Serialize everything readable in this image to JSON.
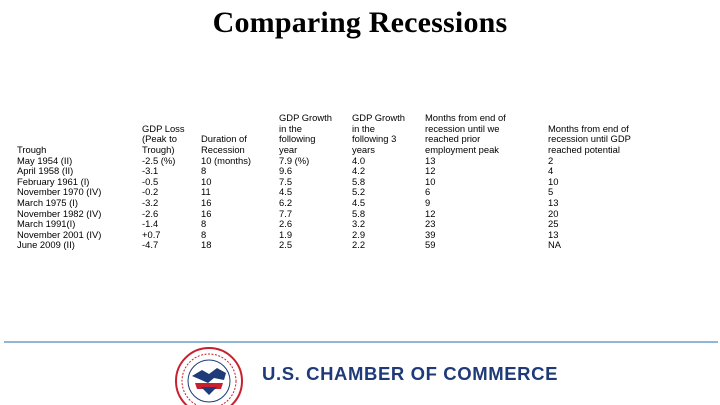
{
  "title": "Comparing Recessions",
  "columns": [
    {
      "header": [
        "Trough"
      ],
      "values": [
        "May 1954 (II)",
        "April 1958 (II)",
        "February 1961 (I)",
        "November 1970 (IV)",
        "March 1975 (I)",
        "November 1982 (IV)",
        "March 1991(I)",
        "November 2001 (IV)",
        "June 2009 (II)"
      ]
    },
    {
      "header": [
        "GDP Loss",
        "(Peak to",
        "Trough)"
      ],
      "values": [
        "-2.5 (%)",
        "-3.1",
        "-0.5",
        "-0.2",
        "-3.2",
        "-2.6",
        "-1.4",
        "+0.7",
        "-4.7"
      ]
    },
    {
      "header": [
        "Duration of",
        "Recession"
      ],
      "values": [
        "10 (months)",
        "8",
        "10",
        "11",
        "16",
        "16",
        "8",
        "8",
        "18"
      ]
    },
    {
      "header": [
        "GDP Growth",
        "in the",
        "following",
        "year"
      ],
      "values": [
        "7.9 (%)",
        "9.6",
        "7.5",
        "4.5",
        "6.2",
        "7.7",
        "2.6",
        "1.9",
        "2.5"
      ]
    },
    {
      "header": [
        "GDP Growth",
        "in the",
        "following 3",
        "years"
      ],
      "values": [
        "4.0",
        "4.2",
        "5.8",
        "5.2",
        "4.5",
        "5.8",
        "3.2",
        "2.9",
        "2.2"
      ]
    },
    {
      "header": [
        "Months from end of",
        "recession until we",
        "reached prior",
        "employment peak"
      ],
      "values": [
        "13",
        "12",
        "10",
        "6",
        "9",
        "12",
        "23",
        "39",
        "59"
      ]
    },
    {
      "header": [
        "Months from end of",
        "recession until GDP",
        "reached potential"
      ],
      "values": [
        "2",
        "4",
        "10",
        "5",
        "13",
        "20",
        "25",
        "13",
        "NA"
      ]
    }
  ],
  "footer": {
    "organization": "U.S. CHAMBER OF COMMERCE",
    "accent_color": "#1f3a78",
    "seal_red": "#c8202f",
    "rule_color": "#8fb6d4"
  }
}
